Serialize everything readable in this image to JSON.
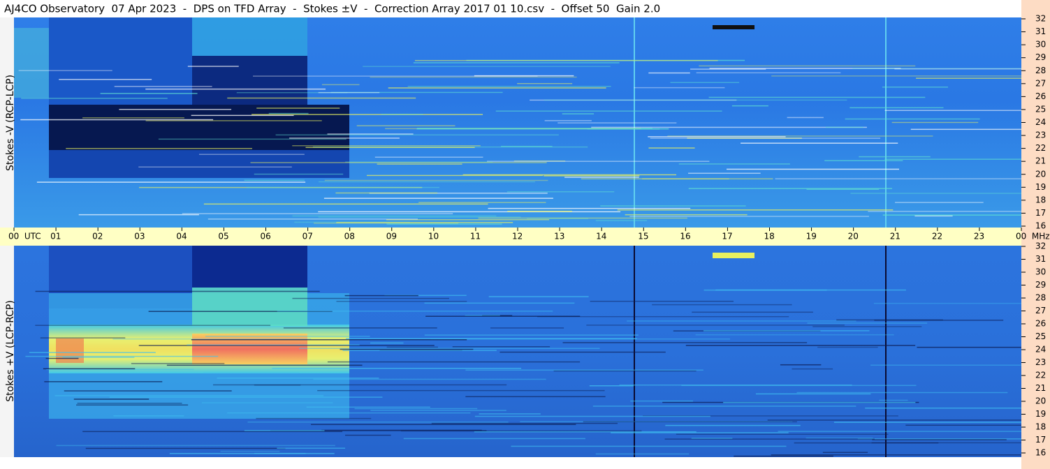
{
  "header": {
    "title": "AJ4CO Observatory  07 Apr 2023  -  DPS on TFD Array  -  Stokes ±V  -  Correction Array 2017 01 10.csv  -  Offset 50  Gain 2.0"
  },
  "panels": [
    {
      "label": "Stokes -V (RCP-LCP)"
    },
    {
      "label": "Stokes +V (LCP-RCP)"
    }
  ],
  "frequency_ticks": [
    "32",
    "31",
    "30",
    "29",
    "28",
    "27",
    "26",
    "25",
    "24",
    "23",
    "22",
    "21",
    "20",
    "19",
    "18",
    "17",
    "16"
  ],
  "time_axis": {
    "labels": [
      "00  UTC",
      "01",
      "02",
      "03",
      "04",
      "05",
      "06",
      "07",
      "08",
      "09",
      "10",
      "11",
      "12",
      "13",
      "14",
      "15",
      "16",
      "17",
      "18",
      "19",
      "20",
      "21",
      "22",
      "23",
      "00  MHz"
    ]
  }
}
